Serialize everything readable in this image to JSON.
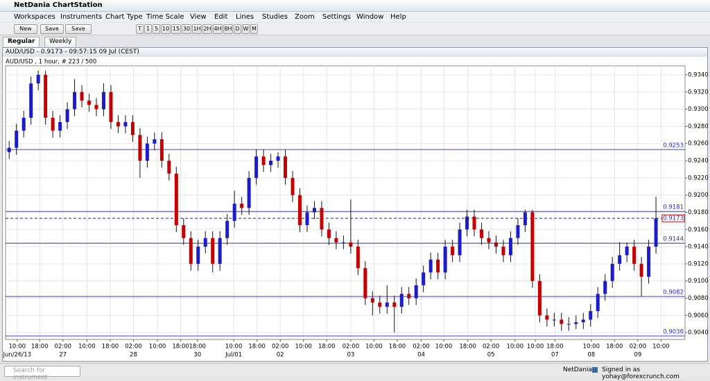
{
  "app_title": "NetDania ChartStation",
  "menu": [
    "Workspaces",
    "Instruments",
    "Chart Type",
    "Time Scale",
    "View",
    "Edit",
    "Lines",
    "Studies",
    "Zoom",
    "Settings",
    "Window",
    "Help"
  ],
  "toolbar": {
    "buttons": [
      "New",
      "Save",
      "Save as.."
    ],
    "timeframes": [
      "T",
      "1",
      "5",
      "10",
      "15",
      "30",
      "1H",
      "2H",
      "4H",
      "8H",
      "D",
      "W",
      "M"
    ]
  },
  "tabs": [
    "Regular",
    "Weekly"
  ],
  "chart_data": {
    "type": "candlestick",
    "title": "AUD/USD - 0.9173 - 09:57:15  09 Jul (CEST)",
    "subtitle": "AUD/USD , 1 hour, # 223 / 500",
    "up_color": "#1c1cc8",
    "down_color": "#c40000",
    "open": [
      0.925,
      0.9255,
      0.9275,
      0.929,
      0.933,
      0.934,
      0.929,
      0.9275,
      0.9285,
      0.93,
      0.932,
      0.931,
      0.9305,
      0.93,
      0.932,
      0.9285,
      0.928,
      0.9285,
      0.927,
      0.924,
      0.926,
      0.9265,
      0.924,
      0.9225,
      0.9165,
      0.915,
      0.912,
      0.914,
      0.915,
      0.912,
      0.915,
      0.917,
      0.919,
      0.9185,
      0.922,
      0.9245,
      0.9235,
      0.924,
      0.9245,
      0.922,
      0.92,
      0.9165,
      0.918,
      0.9185,
      0.916,
      0.915,
      0.9145,
      0.9145,
      0.914,
      0.9115,
      0.908,
      0.9075,
      0.907,
      0.9075,
      0.907,
      0.9085,
      0.908,
      0.9095,
      0.911,
      0.9125,
      0.911,
      0.914,
      0.913,
      0.916,
      0.9175,
      0.916,
      0.915,
      0.9145,
      0.914,
      0.913,
      0.915,
      0.9165,
      0.918,
      0.91,
      0.906,
      0.9055,
      0.9055,
      0.905,
      0.905,
      0.9052,
      0.9055,
      0.9065,
      0.9085,
      0.91,
      0.912,
      0.913,
      0.914,
      0.912,
      0.9105,
      0.914
    ],
    "high": [
      0.9263,
      0.9283,
      0.9298,
      0.9338,
      0.9345,
      0.9345,
      0.9298,
      0.9293,
      0.9308,
      0.9335,
      0.9328,
      0.9318,
      0.9313,
      0.933,
      0.9328,
      0.9293,
      0.9293,
      0.9293,
      0.9278,
      0.9268,
      0.9273,
      0.9273,
      0.9248,
      0.9233,
      0.9173,
      0.9158,
      0.9148,
      0.9158,
      0.9158,
      0.9158,
      0.9178,
      0.9205,
      0.9198,
      0.9228,
      0.9253,
      0.9253,
      0.9248,
      0.925,
      0.9253,
      0.9228,
      0.9208,
      0.9188,
      0.9193,
      0.9193,
      0.9168,
      0.9158,
      0.9153,
      0.9195,
      0.9148,
      0.9123,
      0.9088,
      0.9083,
      0.9095,
      0.9083,
      0.9093,
      0.9093,
      0.9103,
      0.9118,
      0.9133,
      0.9133,
      0.9148,
      0.9148,
      0.9168,
      0.9183,
      0.9183,
      0.9168,
      0.9158,
      0.9153,
      0.9148,
      0.9158,
      0.9173,
      0.9183,
      0.9183,
      0.9108,
      0.9068,
      0.9063,
      0.9063,
      0.9058,
      0.906,
      0.9063,
      0.9073,
      0.9093,
      0.9108,
      0.9128,
      0.9145,
      0.9145,
      0.9148,
      0.9128,
      0.9148,
      0.9198
    ],
    "low": [
      0.9242,
      0.9247,
      0.9267,
      0.9282,
      0.9322,
      0.9282,
      0.9267,
      0.9267,
      0.9277,
      0.9292,
      0.9302,
      0.9297,
      0.9292,
      0.9292,
      0.9277,
      0.9272,
      0.9272,
      0.9262,
      0.922,
      0.9232,
      0.9252,
      0.9232,
      0.9217,
      0.9157,
      0.9142,
      0.9112,
      0.9112,
      0.9132,
      0.911,
      0.9112,
      0.9142,
      0.9162,
      0.9177,
      0.9177,
      0.9212,
      0.9227,
      0.9227,
      0.9232,
      0.9212,
      0.9192,
      0.9157,
      0.9157,
      0.9172,
      0.9152,
      0.9142,
      0.9137,
      0.9137,
      0.9132,
      0.9107,
      0.9072,
      0.906,
      0.9062,
      0.9062,
      0.904,
      0.9062,
      0.9072,
      0.9072,
      0.9087,
      0.9102,
      0.9102,
      0.9102,
      0.9122,
      0.9122,
      0.9152,
      0.9152,
      0.9142,
      0.9137,
      0.9132,
      0.9122,
      0.9122,
      0.9142,
      0.9157,
      0.9092,
      0.9052,
      0.9047,
      0.9047,
      0.9042,
      0.9042,
      0.9044,
      0.9044,
      0.9047,
      0.9057,
      0.9077,
      0.9092,
      0.9112,
      0.9122,
      0.9112,
      0.9082,
      0.9097,
      0.9132
    ],
    "close": [
      0.9255,
      0.9275,
      0.929,
      0.933,
      0.934,
      0.929,
      0.9275,
      0.9285,
      0.93,
      0.932,
      0.931,
      0.9305,
      0.93,
      0.932,
      0.9285,
      0.928,
      0.9285,
      0.927,
      0.924,
      0.926,
      0.9265,
      0.924,
      0.9225,
      0.9165,
      0.915,
      0.912,
      0.914,
      0.915,
      0.912,
      0.915,
      0.917,
      0.919,
      0.9185,
      0.922,
      0.9245,
      0.9235,
      0.924,
      0.9245,
      0.922,
      0.92,
      0.9165,
      0.918,
      0.9185,
      0.916,
      0.915,
      0.9145,
      0.9145,
      0.914,
      0.9115,
      0.908,
      0.9075,
      0.907,
      0.9075,
      0.907,
      0.9085,
      0.908,
      0.9095,
      0.911,
      0.9125,
      0.911,
      0.914,
      0.913,
      0.916,
      0.9175,
      0.916,
      0.915,
      0.9145,
      0.914,
      0.913,
      0.915,
      0.9165,
      0.918,
      0.91,
      0.906,
      0.9055,
      0.9055,
      0.905,
      0.905,
      0.9052,
      0.9055,
      0.9065,
      0.9085,
      0.91,
      0.912,
      0.913,
      0.914,
      0.912,
      0.9105,
      0.914,
      0.9173
    ],
    "xlim": [
      0,
      93.5
    ],
    "xticks": [
      {
        "value": 1.6,
        "label": "10:00"
      },
      {
        "value": 4.7,
        "label": "18:00"
      },
      {
        "value": 7.9,
        "label": "02:00"
      },
      {
        "value": 11.2,
        "label": "10:00"
      },
      {
        "value": 14.4,
        "label": "18:00"
      },
      {
        "value": 17.6,
        "label": "02:00"
      },
      {
        "value": 20.9,
        "label": "10:00"
      },
      {
        "value": 24.1,
        "label": "18:00"
      },
      {
        "value": 26.4,
        "label": "18:00"
      },
      {
        "value": 31.4,
        "label": "10:00"
      },
      {
        "value": 34.6,
        "label": "18:00"
      },
      {
        "value": 37.8,
        "label": "02:00"
      },
      {
        "value": 41.0,
        "label": "10:00"
      },
      {
        "value": 44.2,
        "label": "18:00"
      },
      {
        "value": 47.5,
        "label": "02:00"
      },
      {
        "value": 50.7,
        "label": "10:00"
      },
      {
        "value": 53.9,
        "label": "18:00"
      },
      {
        "value": 57.2,
        "label": "02:00"
      },
      {
        "value": 60.3,
        "label": "10:00"
      },
      {
        "value": 63.6,
        "label": "18:00"
      },
      {
        "value": 66.8,
        "label": "02:00"
      },
      {
        "value": 70.1,
        "label": "10:00"
      },
      {
        "value": 72.9,
        "label": "10:00"
      },
      {
        "value": 75.6,
        "label": "18:00"
      },
      {
        "value": 80.6,
        "label": "10:00"
      },
      {
        "value": 83.8,
        "label": "18:00"
      },
      {
        "value": 87.0,
        "label": "02:00"
      },
      {
        "value": 90.2,
        "label": "10:00"
      }
    ],
    "date_labels": [
      {
        "value": 1.6,
        "label": "Jun/26/13"
      },
      {
        "value": 7.9,
        "label": "27"
      },
      {
        "value": 17.6,
        "label": "28"
      },
      {
        "value": 26.4,
        "label": "30"
      },
      {
        "value": 31.4,
        "label": "Jul/01"
      },
      {
        "value": 37.8,
        "label": "02"
      },
      {
        "value": 47.5,
        "label": "03"
      },
      {
        "value": 57.2,
        "label": "04"
      },
      {
        "value": 66.8,
        "label": "05"
      },
      {
        "value": 75.6,
        "label": "07"
      },
      {
        "value": 80.6,
        "label": "08"
      },
      {
        "value": 87.0,
        "label": "09"
      }
    ],
    "ylim": [
      0.9032,
      0.93505
    ],
    "yticks": [
      {
        "value": 0.904,
        "label": "0.9040"
      },
      {
        "value": 0.906,
        "label": "0.9060"
      },
      {
        "value": 0.908,
        "label": "0.9080"
      },
      {
        "value": 0.91,
        "label": "0.9100"
      },
      {
        "value": 0.912,
        "label": "0.9120"
      },
      {
        "value": 0.914,
        "label": "0.9140"
      },
      {
        "value": 0.916,
        "label": "0.9160"
      },
      {
        "value": 0.918,
        "label": "0.9180"
      },
      {
        "value": 0.92,
        "label": "0.9200"
      },
      {
        "value": 0.922,
        "label": "0.9220"
      },
      {
        "value": 0.924,
        "label": "0.9240"
      },
      {
        "value": 0.926,
        "label": "0.9260"
      },
      {
        "value": 0.928,
        "label": "0.9280"
      },
      {
        "value": 0.93,
        "label": "0.9300"
      },
      {
        "value": 0.932,
        "label": "0.9320"
      },
      {
        "value": 0.934,
        "label": "0.9340"
      }
    ],
    "grid": true,
    "levels": [
      0.9253,
      0.9181,
      0.9144,
      0.9082,
      0.9036
    ],
    "current_price": 0.9173
  },
  "status": {
    "search_placeholder": "Search for instrument",
    "brand": "NetDania",
    "signed_in": "Signed in as yohay@forexcrunch.com"
  }
}
